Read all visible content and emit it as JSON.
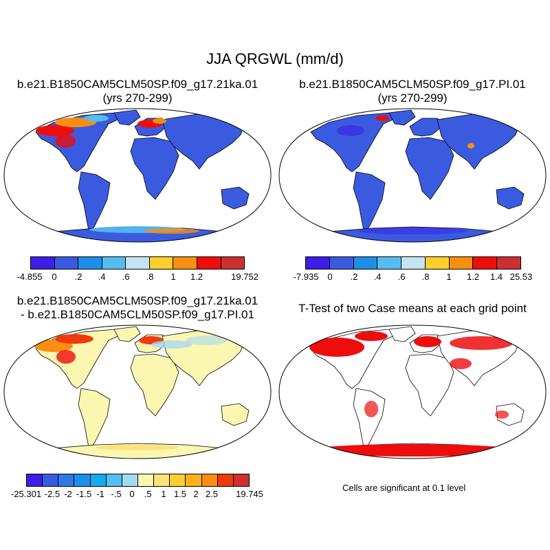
{
  "main_title": "JJA QRGWL (mm/d)",
  "panels": [
    {
      "title_line1": "b.e21.B1850CAM5CLM50SP.f09_g17.21ka.01",
      "title_line2": "(yrs 270-299)"
    },
    {
      "title_line1": "b.e21.B1850CAM5CLM50SP.f09_g17.PI.01",
      "title_line2": "(yrs 270-299)"
    },
    {
      "title_line1": "b.e21.B1850CAM5CLM50SP.f09_g17.21ka.01",
      "title_line2": "- b.e21.B1850CAM5CLM50SP.f09_g17.PI.01"
    },
    {
      "title_line1": "T-Test of two Case means at each grid point",
      "title_line2": ""
    }
  ],
  "colorbars": [
    {
      "colors": [
        "#3b1fe8",
        "#3a5be0",
        "#1e8fe9",
        "#55bdef",
        "#c4e4f4",
        "#fccf2e",
        "#fa8e10",
        "#ee0d0d",
        "#cc3030"
      ],
      "labels": [
        "-4.855",
        "0",
        ".2",
        ".4",
        ".6",
        ".8",
        "1",
        "1.2",
        "19.752"
      ]
    },
    {
      "colors": [
        "#3b1fe8",
        "#3a5be0",
        "#1e8fe9",
        "#55bdef",
        "#c4e4f4",
        "#fccf2e",
        "#fa8e10",
        "#ee0d0d",
        "#cc3030"
      ],
      "labels": [
        "-7.935",
        "0",
        ".2",
        ".4",
        ".6",
        ".8",
        "1",
        "1.2",
        "1.4",
        "25.53"
      ]
    },
    {
      "colors": [
        "#3b1fe8",
        "#3a5be0",
        "#2f78e6",
        "#1e8fe9",
        "#14aaf0",
        "#55bdef",
        "#a6d8f2",
        "#fcf7b0",
        "#fbe27a",
        "#fccf2e",
        "#fbb01c",
        "#fa8e10",
        "#ee3a0d",
        "#cc3030"
      ],
      "labels": [
        "-25.301",
        "-2.5",
        "-2",
        "-1.5",
        "-1",
        "-.5",
        "0",
        ".5",
        "1",
        "1.5",
        "2",
        "2.5",
        "19.745"
      ]
    }
  ],
  "significance_note": "Cells are significant at 0.1 level",
  "map_colors": {
    "ocean": "#ffffff",
    "field_base": "#3a5be0",
    "field_low": "#3b1fe8",
    "diff_base": "#fcf7b0",
    "significant": "#ee0d0d",
    "high_warm": "#fa8e10"
  }
}
